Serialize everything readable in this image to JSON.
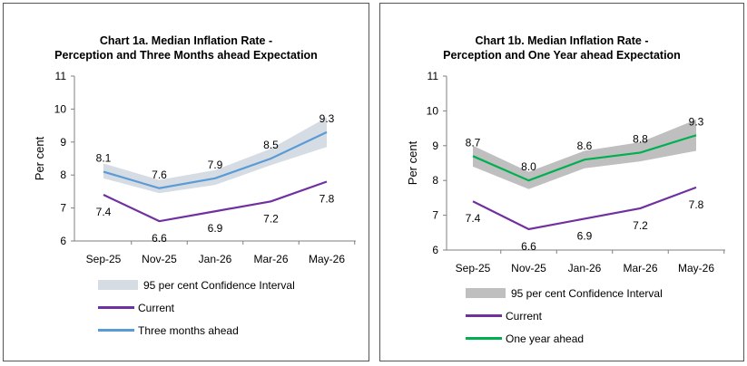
{
  "chart_data": [
    {
      "type": "line",
      "title_line1": "Chart 1a. Median Inflation Rate -",
      "title_line2": "Perception and Three Months ahead Expectation",
      "ylabel": "Per cent",
      "xlabel": "",
      "ylim": [
        6,
        11
      ],
      "yticks": [
        6,
        7,
        8,
        9,
        10,
        11
      ],
      "categories": [
        "Sep-25",
        "Nov-25",
        "Jan-26",
        "Mar-26",
        "May-26"
      ],
      "series": [
        {
          "name": "Current",
          "values": [
            7.4,
            6.6,
            6.9,
            7.2,
            7.8
          ],
          "labels": [
            "7.4",
            "6.6",
            "6.9",
            "7.2",
            "7.8"
          ],
          "color": "#7030a0"
        },
        {
          "name": "Three months ahead",
          "values": [
            8.1,
            7.6,
            7.9,
            8.5,
            9.3
          ],
          "labels": [
            "8.1",
            "7.6",
            "7.9",
            "8.5",
            "9.3"
          ],
          "color": "#5b9bd5"
        }
      ],
      "band": {
        "name": "95 per cent Confidence Interval",
        "lower": [
          7.9,
          7.45,
          7.7,
          8.3,
          8.85
        ],
        "upper": [
          8.35,
          7.85,
          8.15,
          8.8,
          9.75
        ],
        "color": "#d6dce4"
      },
      "legend": [
        "95 per cent Confidence Interval",
        "Current",
        "Three months ahead"
      ],
      "legend_position": "bottom",
      "grid": false
    },
    {
      "type": "line",
      "title_line1": "Chart 1b. Median Inflation Rate -",
      "title_line2": "Perception and One Year ahead Expectation",
      "ylabel": "Per cent",
      "xlabel": "",
      "ylim": [
        6,
        11
      ],
      "yticks": [
        6,
        7,
        8,
        9,
        10,
        11
      ],
      "categories": [
        "Sep-25",
        "Nov-25",
        "Jan-26",
        "Mar-26",
        "May-26"
      ],
      "series": [
        {
          "name": "Current",
          "values": [
            7.4,
            6.6,
            6.9,
            7.2,
            7.8
          ],
          "labels": [
            "7.4",
            "6.6",
            "6.9",
            "7.2",
            "7.8"
          ],
          "color": "#7030a0"
        },
        {
          "name": "One year ahead",
          "values": [
            8.7,
            8.0,
            8.6,
            8.8,
            9.3
          ],
          "labels": [
            "8.7",
            "8.0",
            "8.6",
            "8.8",
            "9.3"
          ],
          "color": "#00b050"
        }
      ],
      "band": {
        "name": "95 per cent Confidence Interval",
        "lower": [
          8.4,
          7.75,
          8.35,
          8.55,
          8.85
        ],
        "upper": [
          9.0,
          8.25,
          8.85,
          9.1,
          9.75
        ],
        "color": "#bfbfbf"
      },
      "legend": [
        "95 per cent Confidence Interval",
        "Current",
        "One year ahead"
      ],
      "legend_position": "bottom",
      "grid": false
    }
  ]
}
